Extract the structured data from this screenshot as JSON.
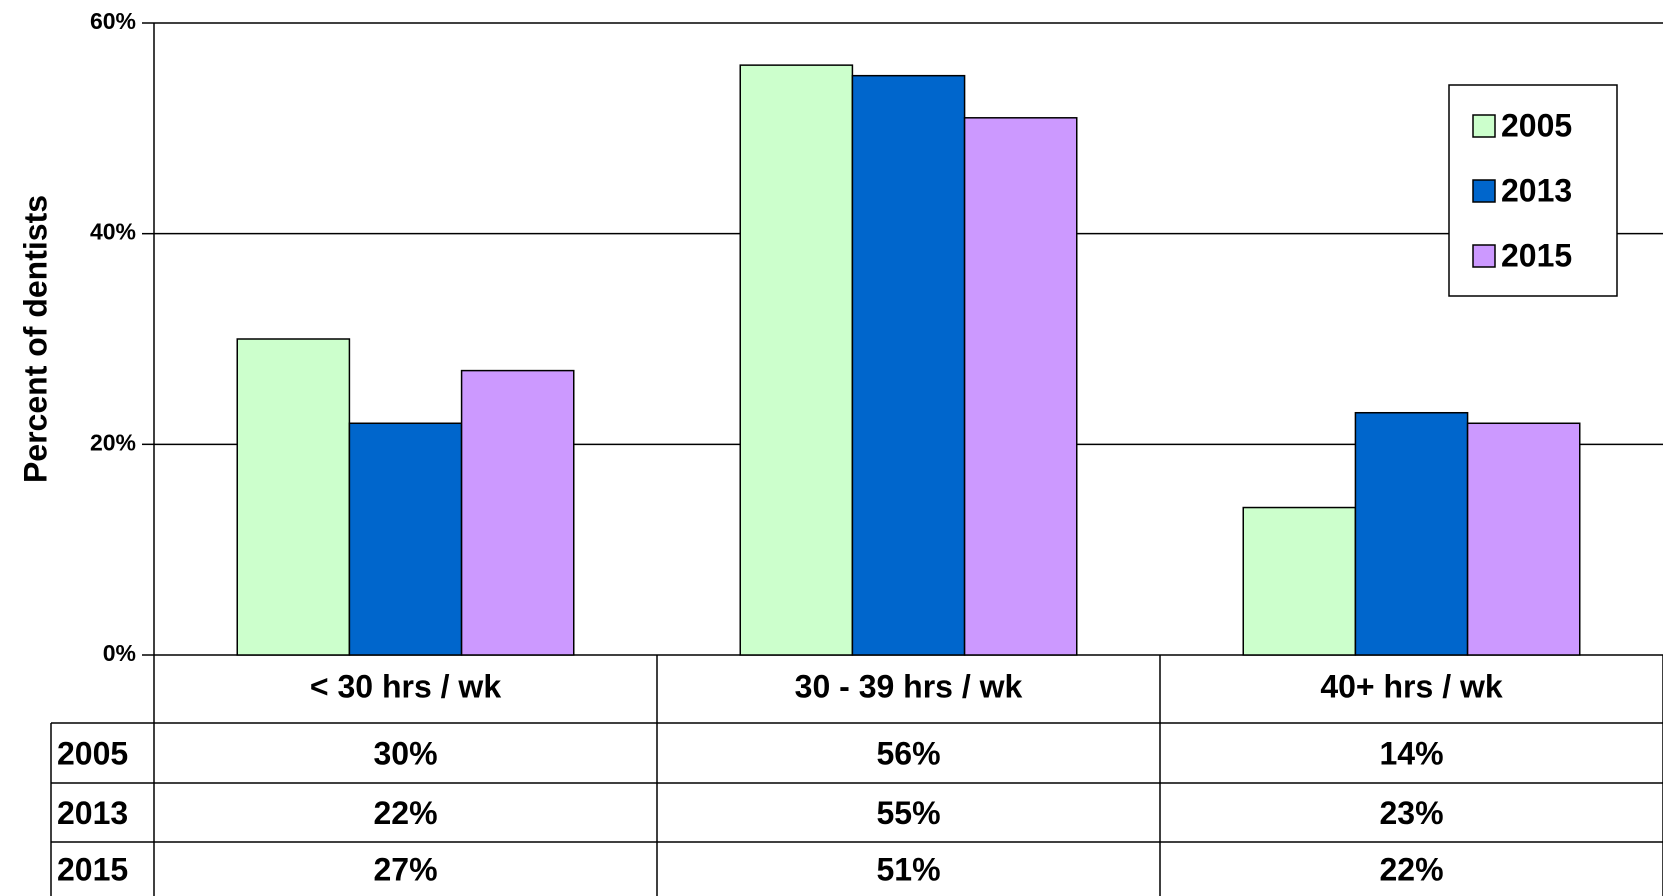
{
  "chart_data": {
    "type": "bar",
    "y_label": "Percent of dentists",
    "categories": [
      "< 30 hrs / wk",
      "30 - 39 hrs / wk",
      "40+ hrs / wk"
    ],
    "series": [
      {
        "name": "2005",
        "color": "#ccffcc",
        "values": [
          30,
          56,
          14
        ],
        "value_labels": [
          "30%",
          "56%",
          "14%"
        ]
      },
      {
        "name": "2013",
        "color": "#0066cc",
        "values": [
          22,
          55,
          23
        ],
        "value_labels": [
          "22%",
          "55%",
          "23%"
        ]
      },
      {
        "name": "2015",
        "color": "#cc99ff",
        "values": [
          27,
          51,
          22
        ],
        "value_labels": [
          "27%",
          "51%",
          "22%"
        ]
      }
    ],
    "ylim": [
      0,
      60
    ],
    "yticks": [
      {
        "value": 0,
        "label": "0%"
      },
      {
        "value": 20,
        "label": "20%"
      },
      {
        "value": 40,
        "label": "40%"
      },
      {
        "value": 60,
        "label": "60%"
      }
    ],
    "grid": true,
    "legend": "upper right",
    "data_table": true
  }
}
